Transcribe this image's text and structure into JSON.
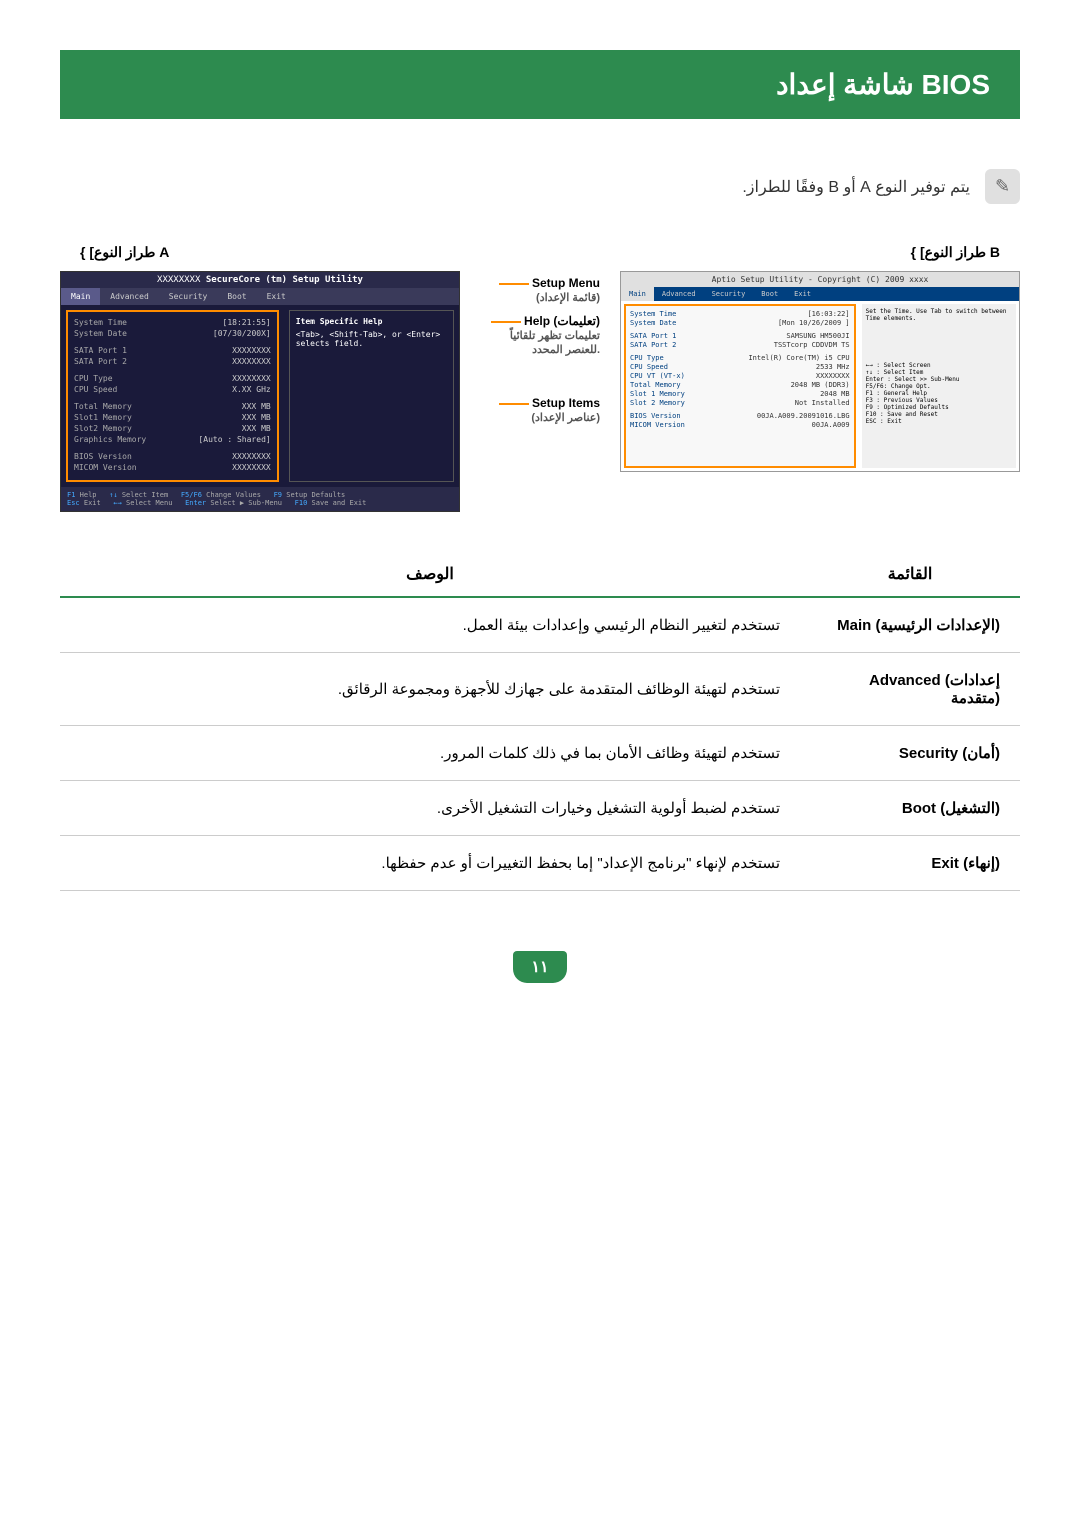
{
  "title": "شاشة إعداد BIOS",
  "note": "يتم توفير النوع A أو B وفقًا للطراز.",
  "note_icon": "✎",
  "typeA_label": "{ [طراز النوع A",
  "typeB_label": "{ [طراز النوع B",
  "biosA": {
    "titlebar_prefix": "XXXXXXXX ",
    "titlebar_bold": "SecureCore (tm) Setup Utility",
    "tabs": [
      "Main",
      "Advanced",
      "Security",
      "Boot",
      "Exit"
    ],
    "help_title": "Item Specific Help",
    "help_text": "<Tab>, <Shift-Tab>, or <Enter> selects field.",
    "rows": [
      {
        "k": "System Time",
        "v": "[18:21:55]"
      },
      {
        "k": "System Date",
        "v": "[07/30/200X]"
      },
      {
        "k": "",
        "v": ""
      },
      {
        "k": "SATA Port 1",
        "v": "XXXXXXXX"
      },
      {
        "k": "SATA Port 2",
        "v": "XXXXXXXX"
      },
      {
        "k": "",
        "v": ""
      },
      {
        "k": "CPU Type",
        "v": "XXXXXXXX"
      },
      {
        "k": "CPU Speed",
        "v": "X.XX GHz"
      },
      {
        "k": "",
        "v": ""
      },
      {
        "k": "Total Memory",
        "v": "XXX MB"
      },
      {
        "k": "  Slot1 Memory",
        "v": "XXX MB"
      },
      {
        "k": "  Slot2 Memory",
        "v": "XXX MB"
      },
      {
        "k": "Graphics Memory",
        "v": "[Auto : Shared]"
      },
      {
        "k": "",
        "v": ""
      },
      {
        "k": "BIOS Version",
        "v": "XXXXXXXX"
      },
      {
        "k": "MICOM Version",
        "v": "XXXXXXXX"
      }
    ],
    "footer_f1": "F1",
    "footer_help": "Help",
    "footer_arrows1": "↑↓",
    "footer_select_item": "Select Item",
    "footer_f5f6": "F5/F6",
    "footer_change": "Change Values",
    "footer_f9": "F9",
    "footer_defaults": "Setup Defaults",
    "footer_esc": "Esc",
    "footer_exit": "Exit",
    "footer_arrows2": "←→",
    "footer_select_menu": "Select Menu",
    "footer_enter": "Enter",
    "footer_submenu": "Select ▶ Sub-Menu",
    "footer_f10": "F10",
    "footer_save": "Save and Exit"
  },
  "middle": {
    "setup_menu": "Setup Menu",
    "setup_menu_ar": "(قائمة الإعداد)",
    "help_label": "Help (تعليمات)",
    "help_desc": "تعليمات تظهر تلقائياً للعنصر المحدد.",
    "setup_items": "Setup Items",
    "setup_items_ar": "(عناصر الإعداد)"
  },
  "biosB": {
    "titlebar": "Aptio Setup Utility - Copyright (C) 2009 xxxx",
    "tabs": [
      "Main",
      "Advanced",
      "Security",
      "Boot",
      "Exit"
    ],
    "help1": "Set the Time. Use Tab  to switch between Time elements.",
    "rows": [
      {
        "k": "System Time",
        "v": "[16:03:22]"
      },
      {
        "k": "System Date",
        "v": "[Mon 10/26/2009 ]"
      },
      {
        "k": "",
        "v": ""
      },
      {
        "k": "SATA Port 1",
        "v": "SAMSUNG HM500JI"
      },
      {
        "k": "SATA Port 2",
        "v": "TSSTcorp CDDVDM TS"
      },
      {
        "k": "",
        "v": ""
      },
      {
        "k": "CPU Type",
        "v": "Intel(R) Core(TM) i5 CPU"
      },
      {
        "k": "CPU Speed",
        "v": "2533 MHz"
      },
      {
        "k": "CPU VT (VT-x)",
        "v": "XXXXXXXX"
      },
      {
        "k": "Total Memory",
        "v": "2048 MB (DDR3)"
      },
      {
        "k": "Slot 1 Memory",
        "v": "2048 MB"
      },
      {
        "k": "Slot 2 Memory",
        "v": "Not Installed"
      },
      {
        "k": "",
        "v": ""
      },
      {
        "k": "BIOS Version",
        "v": "00JA.A009.20091016.LBG"
      },
      {
        "k": "MICOM Version",
        "v": "00JA.A009"
      }
    ],
    "help_keys": [
      "←→    : Select Screen",
      "↑↓    : Select Item",
      "Enter : Select >> Sub-Menu",
      "F5/F6: Change Opt.",
      "F1     : General Help",
      "F3     : Previous Values",
      "F9     : Optimized Defaults",
      "F10   : Save and Reset",
      "ESC  : Exit"
    ]
  },
  "table": {
    "header_menu": "القائمة",
    "header_desc": "الوصف",
    "rows": [
      {
        "menu": "Main (الإعدادات الرئيسية)",
        "desc": "تستخدم لتغيير النظام الرئيسي وإعدادات بيئة العمل."
      },
      {
        "menu": "Advanced (إعدادات متقدمة)",
        "desc": "تستخدم لتهيئة الوظائف المتقدمة على جهازك للأجهزة ومجموعة الرقائق."
      },
      {
        "menu": "Security (أمان)",
        "desc": "تستخدم لتهيئة وظائف الأمان بما في ذلك كلمات المرور."
      },
      {
        "menu": "Boot (التشغيل)",
        "desc": "تستخدم لضبط أولوية التشغيل وخيارات التشغيل الأخرى."
      },
      {
        "menu": "Exit (إنهاء)",
        "desc": "تستخدم لإنهاء \"برنامج الإعداد\" إما بحفظ التغييرات أو عدم حفظها."
      }
    ]
  },
  "page_number": "١١"
}
